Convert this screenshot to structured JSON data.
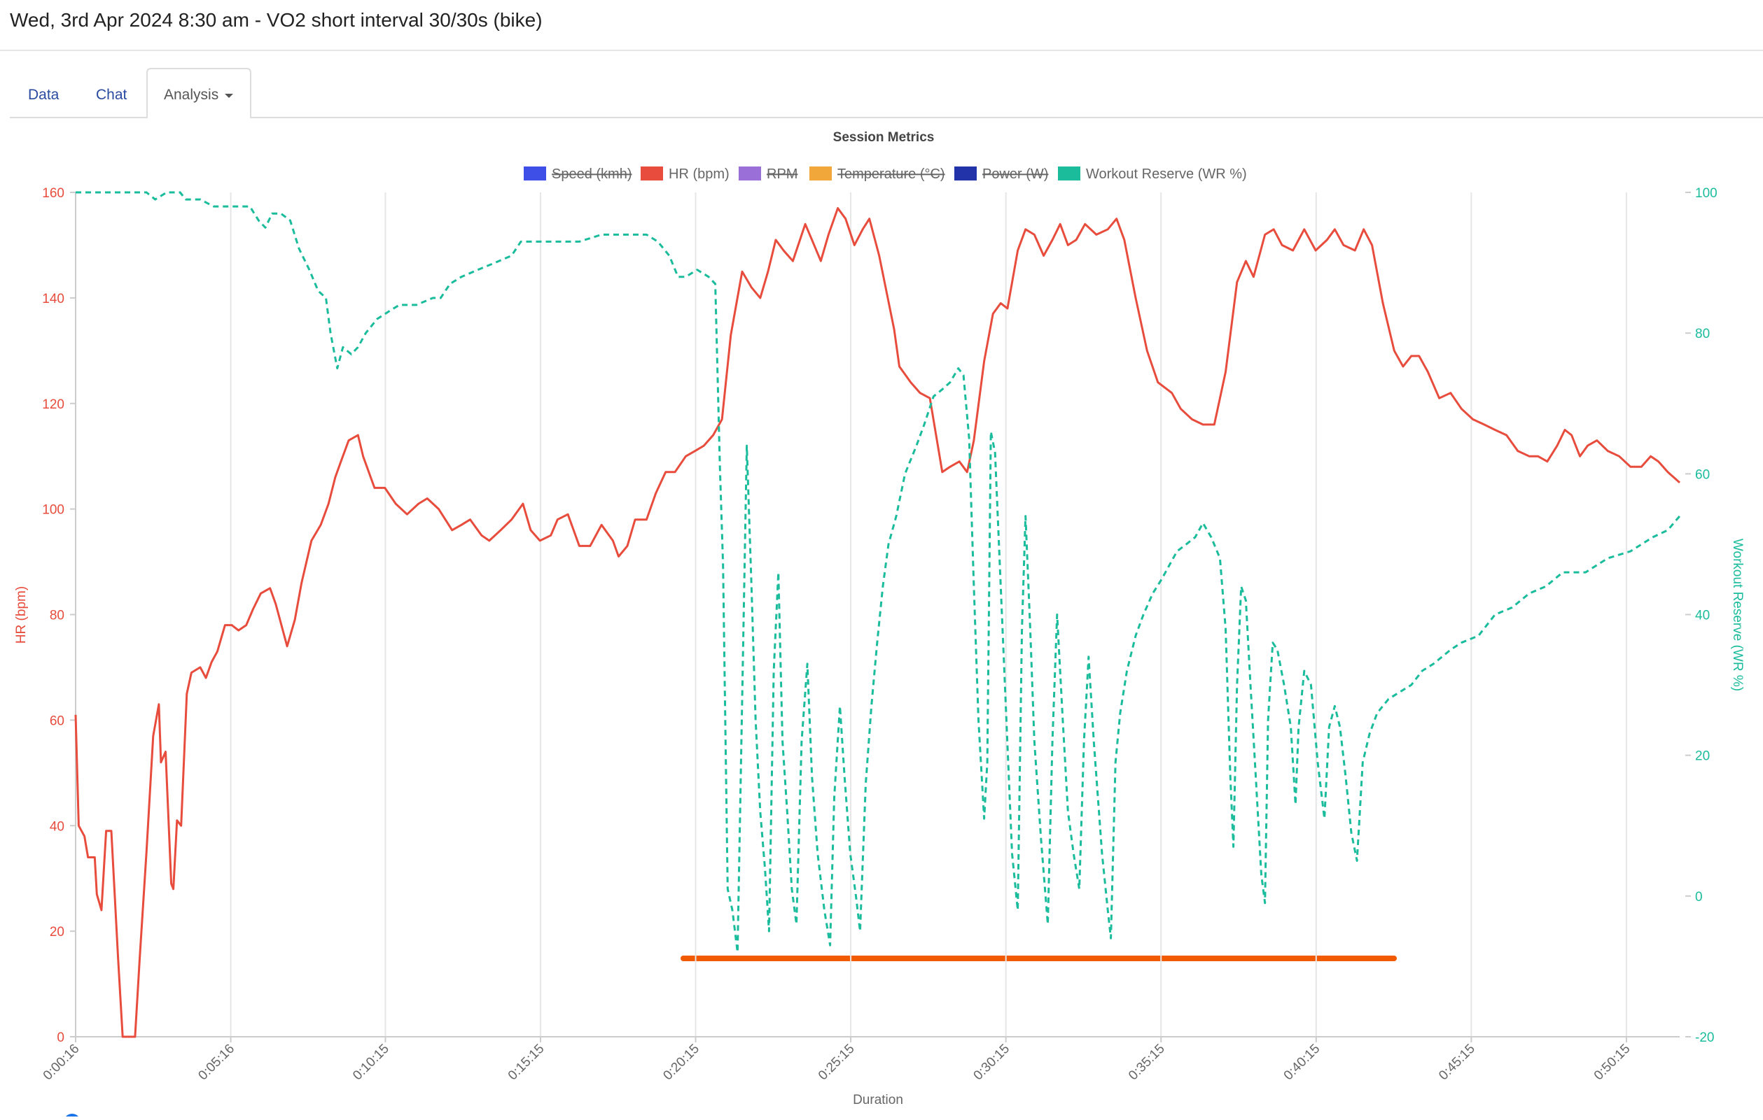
{
  "header": {
    "title": "Wed, 3rd Apr 2024 8:30 am - VO2 short interval 30/30s (bike)"
  },
  "tabs": [
    "Data",
    "Chat",
    "Analysis"
  ],
  "chart_data": {
    "type": "line",
    "title": "Session Metrics",
    "x_label": "Duration",
    "y_label": "HR (bpm)",
    "y2_label": "Workout Reserve (WR %)",
    "xlim": [
      16,
      3118
    ],
    "xticks": [
      {
        "value": 16,
        "label": "0:00:16"
      },
      {
        "value": 316,
        "label": "0:05:16"
      },
      {
        "value": 615,
        "label": "0:10:15"
      },
      {
        "value": 915,
        "label": "0:15:15"
      },
      {
        "value": 1215,
        "label": "0:20:15"
      },
      {
        "value": 1515,
        "label": "0:25:15"
      },
      {
        "value": 1815,
        "label": "0:30:15"
      },
      {
        "value": 2115,
        "label": "0:35:15"
      },
      {
        "value": 2415,
        "label": "0:40:15"
      },
      {
        "value": 2715,
        "label": "0:45:15"
      },
      {
        "value": 3015,
        "label": "0:50:15"
      }
    ],
    "ylim": [
      0,
      160
    ],
    "yticks": [
      0,
      20,
      40,
      60,
      80,
      100,
      120,
      140,
      160
    ],
    "y2lim": [
      -20,
      100
    ],
    "y2ticks": [
      -20,
      0,
      20,
      40,
      60,
      80,
      100
    ],
    "grid": true,
    "series": [
      {
        "name": "Speed (kmh)",
        "color": "#3d4fe6",
        "hidden": true
      },
      {
        "name": "HR (bpm)",
        "color": "#e74c3c",
        "axis": "y",
        "x": [
          16,
          22,
          33,
          40,
          53,
          57,
          66,
          75,
          85,
          98,
          107,
          131,
          140,
          153,
          166,
          177,
          181,
          190,
          201,
          205,
          212,
          220,
          231,
          240,
          257,
          268,
          279,
          290,
          305,
          318,
          331,
          346,
          359,
          374,
          392,
          403,
          425,
          440,
          453,
          472,
          490,
          505,
          518,
          529,
          544,
          562,
          572,
          594,
          614,
          635,
          657,
          679,
          696,
          718,
          744,
          762,
          779,
          801,
          816,
          838,
          859,
          881,
          896,
          914,
          935,
          948,
          968,
          990,
          1011,
          1033,
          1055,
          1066,
          1083,
          1098,
          1120,
          1138,
          1157,
          1175,
          1196,
          1214,
          1231,
          1249,
          1266,
          1283,
          1305,
          1323,
          1340,
          1355,
          1370,
          1385,
          1403,
          1427,
          1440,
          1457,
          1472,
          1490,
          1505,
          1522,
          1538,
          1551,
          1570,
          1599,
          1609,
          1631,
          1649,
          1668,
          1692,
          1707,
          1725,
          1740,
          1753,
          1773,
          1790,
          1805,
          1818,
          1838,
          1853,
          1870,
          1888,
          1905,
          1920,
          1935,
          1951,
          1968,
          1990,
          2012,
          2029,
          2044,
          2066,
          2088,
          2109,
          2136,
          2153,
          2175,
          2196,
          2218,
          2240,
          2262,
          2279,
          2294,
          2316,
          2333,
          2349,
          2370,
          2392,
          2414,
          2436,
          2451,
          2468,
          2490,
          2507,
          2523,
          2544,
          2566,
          2583,
          2599,
          2614,
          2631,
          2653,
          2675,
          2696,
          2718,
          2740,
          2761,
          2783,
          2805,
          2827,
          2844,
          2862,
          2881,
          2896,
          2909,
          2925,
          2940,
          2958,
          2979,
          3001,
          3023,
          3044,
          3062,
          3077,
          3095,
          3118
        ],
        "values": [
          61,
          40,
          38,
          34,
          34,
          27,
          24,
          39,
          39,
          15,
          0,
          0,
          15,
          35,
          57,
          63,
          52,
          54,
          29,
          28,
          41,
          40,
          65,
          69,
          70,
          68,
          71,
          73,
          78,
          78,
          77,
          78,
          81,
          84,
          85,
          82,
          74,
          79,
          86,
          94,
          97,
          101,
          106,
          109,
          113,
          114,
          110,
          104,
          104,
          101,
          99,
          101,
          102,
          100,
          96,
          97,
          98,
          95,
          94,
          96,
          98,
          101,
          96,
          94,
          95,
          98,
          99,
          93,
          93,
          97,
          94,
          91,
          93,
          98,
          98,
          103,
          107,
          107,
          110,
          111,
          112,
          114,
          117,
          133,
          145,
          142,
          140,
          145,
          151,
          149,
          147,
          154,
          151,
          147,
          152,
          157,
          155,
          150,
          153,
          155,
          148,
          134,
          127,
          124,
          122,
          121,
          107,
          108,
          109,
          107,
          113,
          128,
          137,
          139,
          138,
          149,
          153,
          152,
          148,
          151,
          154,
          150,
          151,
          154,
          152,
          153,
          155,
          151,
          140,
          130,
          124,
          122,
          119,
          117,
          116,
          116,
          126,
          143,
          147,
          144,
          152,
          153,
          150,
          149,
          153,
          149,
          151,
          153,
          150,
          149,
          153,
          150,
          139,
          130,
          127,
          129,
          129,
          126,
          121,
          122,
          119,
          117,
          116,
          115,
          114,
          111,
          110,
          110,
          109,
          112,
          115,
          114,
          110,
          112,
          113,
          111,
          110,
          108,
          108,
          110,
          109,
          107,
          105
        ]
      },
      {
        "name": "RPM",
        "color": "#9b6fd8",
        "hidden": true
      },
      {
        "name": "Temperature (°C)",
        "color": "#f2a73b",
        "hidden": true
      },
      {
        "name": "Power (W)",
        "color": "#2232a8",
        "hidden": true
      },
      {
        "name": "Workout Reserve (WR %)",
        "color": "#1abc9c",
        "axis": "y2",
        "dashed": true,
        "x": [
          16,
          88,
          153,
          170,
          192,
          218,
          229,
          240,
          257,
          283,
          326,
          353,
          370,
          383,
          396,
          413,
          431,
          448,
          468,
          485,
          500,
          509,
          522,
          533,
          549,
          562,
          577,
          599,
          620,
          642,
          675,
          707,
          722,
          740,
          762,
          794,
          827,
          859,
          877,
          914,
          946,
          990,
          1033,
          1088,
          1120,
          1142,
          1164,
          1181,
          1196,
          1218,
          1240,
          1253,
          1262,
          1268,
          1277,
          1286,
          1296,
          1305,
          1314,
          1323,
          1331,
          1340,
          1349,
          1357,
          1366,
          1375,
          1383,
          1392,
          1401,
          1410,
          1420,
          1431,
          1440,
          1451,
          1464,
          1475,
          1483,
          1494,
          1503,
          1514,
          1525,
          1533,
          1544,
          1555,
          1566,
          1577,
          1588,
          1603,
          1620,
          1642,
          1657,
          1675,
          1692,
          1707,
          1723,
          1733,
          1744,
          1753,
          1762,
          1773,
          1779,
          1786,
          1794,
          1805,
          1816,
          1827,
          1838,
          1846,
          1853,
          1862,
          1870,
          1883,
          1896,
          1905,
          1914,
          1925,
          1935,
          1946,
          1957,
          1966,
          1975,
          1985,
          2001,
          2012,
          2018,
          2027,
          2036,
          2049,
          2066,
          2081,
          2099,
          2116,
          2131,
          2146,
          2164,
          2181,
          2196,
          2212,
          2229,
          2240,
          2249,
          2255,
          2262,
          2270,
          2279,
          2288,
          2299,
          2309,
          2316,
          2322,
          2331,
          2340,
          2353,
          2366,
          2375,
          2381,
          2392,
          2405,
          2418,
          2431,
          2440,
          2451,
          2461,
          2472,
          2483,
          2494,
          2505,
          2518,
          2533,
          2555,
          2577,
          2599,
          2620,
          2642,
          2675,
          2696,
          2729,
          2761,
          2794,
          2827,
          2859,
          2892,
          2936,
          2979,
          3023,
          3066,
          3095,
          3118
        ],
        "values": [
          100,
          100,
          100,
          99,
          100,
          100,
          99,
          99,
          99,
          98,
          98,
          98,
          96,
          95,
          97,
          97,
          96,
          92,
          89,
          86,
          85,
          80,
          75,
          78,
          77,
          78,
          80,
          82,
          83,
          84,
          84,
          85,
          85,
          87,
          88,
          89,
          90,
          91,
          93,
          93,
          93,
          93,
          94,
          94,
          94,
          93,
          91,
          88,
          88,
          89,
          88,
          87,
          61,
          47,
          1,
          -2,
          -8,
          28,
          64,
          44,
          25,
          12,
          4,
          -5,
          32,
          46,
          22,
          12,
          1,
          -4,
          22,
          33,
          17,
          6,
          -2,
          -7,
          14,
          27,
          17,
          6,
          0,
          -5,
          16,
          27,
          36,
          44,
          50,
          54,
          60,
          64,
          67,
          71,
          72,
          73,
          75,
          74,
          65,
          44,
          25,
          11,
          19,
          66,
          63,
          44,
          25,
          6,
          -2,
          38,
          54,
          38,
          22,
          8,
          -4,
          22,
          40,
          25,
          12,
          6,
          1,
          22,
          34,
          22,
          6,
          -2,
          -6,
          19,
          26,
          32,
          37,
          40,
          43,
          45,
          47,
          49,
          50,
          51,
          53,
          51,
          48,
          38,
          17,
          7,
          30,
          44,
          42,
          30,
          16,
          3,
          -1,
          25,
          36,
          35,
          30,
          24,
          13,
          24,
          32,
          30,
          19,
          11,
          24,
          27,
          24,
          17,
          9,
          5,
          19,
          23,
          26,
          28,
          29,
          30,
          32,
          33,
          35,
          36,
          37,
          40,
          41,
          43,
          44,
          46,
          46,
          48,
          49,
          51,
          52,
          54
        ]
      }
    ]
  }
}
